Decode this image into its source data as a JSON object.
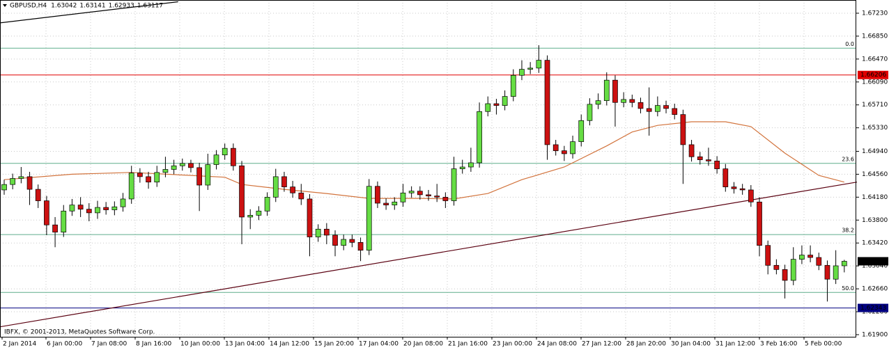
{
  "chart_data": {
    "type": "candlestick",
    "title": "GBPUSD,H4",
    "last_ohlc": [
      1.63042,
      1.63141,
      1.62933,
      1.63117
    ],
    "footer": "IBFX, © 2001-2013, MetaQuotes Software Corp.",
    "categories": [
      "2 Jan 2014",
      "6 Jan 00:00",
      "7 Jan 08:00",
      "8 Jan 16:00",
      "10 Jan 00:00",
      "13 Jan 04:00",
      "14 Jan 12:00",
      "15 Jan 20:00",
      "17 Jan 04:00",
      "20 Jan 08:00",
      "21 Jan 16:00",
      "23 Jan 00:00",
      "24 Jan 08:00",
      "27 Jan 12:00",
      "28 Jan 20:00",
      "30 Jan 04:00",
      "31 Jan 12:00",
      "3 Feb 16:00",
      "5 Feb 00:00"
    ],
    "ylim": [
      1.61865,
      1.67449
    ],
    "yticks": [
      {
        "value": 1.6723,
        "label": "1.67230"
      },
      {
        "value": 1.6685,
        "label": "1.66850"
      },
      {
        "value": 1.6647,
        "label": "1.66470"
      },
      {
        "value": 1.6609,
        "label": "1.66090"
      },
      {
        "value": 1.6571,
        "label": "1.65710"
      },
      {
        "value": 1.6533,
        "label": "1.65330"
      },
      {
        "value": 1.6494,
        "label": "1.64940"
      },
      {
        "value": 1.6456,
        "label": "1.64560"
      },
      {
        "value": 1.6418,
        "label": "1.64180"
      },
      {
        "value": 1.638,
        "label": "1.63800"
      },
      {
        "value": 1.6342,
        "label": "1.63420"
      },
      {
        "value": 1.6304,
        "label": "1.63040"
      },
      {
        "value": 1.6266,
        "label": "1.62660"
      },
      {
        "value": 1.6228,
        "label": "1.62280"
      },
      {
        "value": 1.619,
        "label": "1.61900"
      }
    ],
    "grid": true,
    "up_color": "#66dd44",
    "down_color": "#cc1111",
    "candles": [
      [
        1.643,
        1.6447,
        1.6422,
        1.6439
      ],
      [
        1.6439,
        1.6457,
        1.6431,
        1.6449
      ],
      [
        1.6449,
        1.6468,
        1.6441,
        1.6452
      ],
      [
        1.6452,
        1.646,
        1.6405,
        1.6431
      ],
      [
        1.6431,
        1.6439,
        1.64,
        1.6412
      ],
      [
        1.6412,
        1.642,
        1.6355,
        1.6372
      ],
      [
        1.6372,
        1.6385,
        1.6335,
        1.636
      ],
      [
        1.636,
        1.6405,
        1.6352,
        1.6395
      ],
      [
        1.6395,
        1.6415,
        1.6387,
        1.6405
      ],
      [
        1.6405,
        1.6418,
        1.6385,
        1.6398
      ],
      [
        1.6398,
        1.6408,
        1.6378,
        1.6392
      ],
      [
        1.6392,
        1.6412,
        1.6382,
        1.6401
      ],
      [
        1.6401,
        1.641,
        1.6389,
        1.6397
      ],
      [
        1.6397,
        1.6411,
        1.6388,
        1.6402
      ],
      [
        1.6402,
        1.6425,
        1.6394,
        1.6415
      ],
      [
        1.6415,
        1.647,
        1.6407,
        1.6458
      ],
      [
        1.6458,
        1.6466,
        1.6442,
        1.6452
      ],
      [
        1.6452,
        1.646,
        1.6432,
        1.6443
      ],
      [
        1.6443,
        1.647,
        1.6435,
        1.6459
      ],
      [
        1.6459,
        1.6485,
        1.6451,
        1.6464
      ],
      [
        1.6464,
        1.648,
        1.6456,
        1.647
      ],
      [
        1.647,
        1.6482,
        1.6462,
        1.6474
      ],
      [
        1.6474,
        1.648,
        1.6459,
        1.6467
      ],
      [
        1.6467,
        1.6475,
        1.6395,
        1.6438
      ],
      [
        1.6438,
        1.649,
        1.643,
        1.6472
      ],
      [
        1.6472,
        1.6496,
        1.6464,
        1.6488
      ],
      [
        1.6488,
        1.6507,
        1.648,
        1.6499
      ],
      [
        1.6499,
        1.6507,
        1.6462,
        1.647
      ],
      [
        1.647,
        1.6478,
        1.634,
        1.6385
      ],
      [
        1.6385,
        1.6398,
        1.6365,
        1.6388
      ],
      [
        1.6388,
        1.6403,
        1.638,
        1.6395
      ],
      [
        1.6395,
        1.6426,
        1.6387,
        1.6418
      ],
      [
        1.6418,
        1.6465,
        1.641,
        1.6452
      ],
      [
        1.6452,
        1.646,
        1.6427,
        1.6435
      ],
      [
        1.6435,
        1.6445,
        1.6417,
        1.6425
      ],
      [
        1.6425,
        1.644,
        1.6405,
        1.6415
      ],
      [
        1.6415,
        1.6423,
        1.632,
        1.6352
      ],
      [
        1.6352,
        1.6373,
        1.6344,
        1.6365
      ],
      [
        1.6365,
        1.6375,
        1.634,
        1.6355
      ],
      [
        1.6355,
        1.6363,
        1.632,
        1.6338
      ],
      [
        1.6338,
        1.6356,
        1.633,
        1.6348
      ],
      [
        1.6348,
        1.6356,
        1.6335,
        1.6343
      ],
      [
        1.6343,
        1.6351,
        1.6312,
        1.633
      ],
      [
        1.633,
        1.6448,
        1.6322,
        1.6436
      ],
      [
        1.6436,
        1.6444,
        1.64,
        1.6408
      ],
      [
        1.6408,
        1.6416,
        1.6397,
        1.6405
      ],
      [
        1.6405,
        1.6418,
        1.6397,
        1.641
      ],
      [
        1.641,
        1.644,
        1.6402,
        1.6425
      ],
      [
        1.6425,
        1.6436,
        1.6417,
        1.6428
      ],
      [
        1.6428,
        1.6436,
        1.6414,
        1.6422
      ],
      [
        1.6422,
        1.643,
        1.6412,
        1.642
      ],
      [
        1.642,
        1.644,
        1.641,
        1.6418
      ],
      [
        1.6418,
        1.6426,
        1.64,
        1.6412
      ],
      [
        1.6412,
        1.6485,
        1.6404,
        1.6465
      ],
      [
        1.6465,
        1.648,
        1.6457,
        1.6468
      ],
      [
        1.6468,
        1.65,
        1.646,
        1.6475
      ],
      [
        1.6475,
        1.6575,
        1.6467,
        1.656
      ],
      [
        1.656,
        1.6585,
        1.6552,
        1.6573
      ],
      [
        1.6573,
        1.6581,
        1.6555,
        1.657
      ],
      [
        1.657,
        1.6595,
        1.6562,
        1.6585
      ],
      [
        1.6585,
        1.663,
        1.6577,
        1.662
      ],
      [
        1.662,
        1.6645,
        1.6612,
        1.663
      ],
      [
        1.663,
        1.6642,
        1.6622,
        1.6632
      ],
      [
        1.6632,
        1.667,
        1.6624,
        1.6645
      ],
      [
        1.6645,
        1.6653,
        1.648,
        1.6505
      ],
      [
        1.6505,
        1.6513,
        1.6487,
        1.6495
      ],
      [
        1.6495,
        1.6503,
        1.6478,
        1.649
      ],
      [
        1.649,
        1.652,
        1.6482,
        1.651
      ],
      [
        1.651,
        1.6555,
        1.6502,
        1.6545
      ],
      [
        1.6545,
        1.6582,
        1.6537,
        1.6572
      ],
      [
        1.6572,
        1.659,
        1.6564,
        1.6578
      ],
      [
        1.6578,
        1.6625,
        1.657,
        1.6612
      ],
      [
        1.6612,
        1.662,
        1.6535,
        1.6575
      ],
      [
        1.6575,
        1.6592,
        1.6567,
        1.658
      ],
      [
        1.658,
        1.6588,
        1.6567,
        1.6575
      ],
      [
        1.6575,
        1.6583,
        1.6557,
        1.6565
      ],
      [
        1.6565,
        1.66,
        1.652,
        1.656
      ],
      [
        1.656,
        1.6585,
        1.6552,
        1.657
      ],
      [
        1.657,
        1.6578,
        1.6557,
        1.6565
      ],
      [
        1.6565,
        1.6573,
        1.6547,
        1.6555
      ],
      [
        1.6555,
        1.6563,
        1.644,
        1.6505
      ],
      [
        1.6505,
        1.6513,
        1.6477,
        1.6485
      ],
      [
        1.6485,
        1.6493,
        1.6472,
        1.648
      ],
      [
        1.648,
        1.65,
        1.647,
        1.6478
      ],
      [
        1.6478,
        1.6486,
        1.6457,
        1.6465
      ],
      [
        1.6465,
        1.6473,
        1.6427,
        1.6435
      ],
      [
        1.6435,
        1.6443,
        1.6424,
        1.6432
      ],
      [
        1.6432,
        1.644,
        1.6422,
        1.643
      ],
      [
        1.643,
        1.6438,
        1.6402,
        1.641
      ],
      [
        1.641,
        1.6418,
        1.632,
        1.6338
      ],
      [
        1.6338,
        1.6346,
        1.629,
        1.6305
      ],
      [
        1.6305,
        1.6315,
        1.629,
        1.6298
      ],
      [
        1.6298,
        1.6306,
        1.625,
        1.628
      ],
      [
        1.628,
        1.6335,
        1.6272,
        1.6315
      ],
      [
        1.6315,
        1.6338,
        1.6307,
        1.6322
      ],
      [
        1.6322,
        1.6338,
        1.631,
        1.6318
      ],
      [
        1.6318,
        1.6326,
        1.6297,
        1.6305
      ],
      [
        1.6305,
        1.6313,
        1.6245,
        1.6282
      ],
      [
        1.6282,
        1.633,
        1.6274,
        1.63042
      ],
      [
        1.63042,
        1.63141,
        1.62933,
        1.63117
      ]
    ],
    "moving_average": {
      "color": "#d2733c",
      "x": [
        0,
        8,
        15,
        22,
        26,
        28,
        33,
        38,
        43,
        49,
        53,
        57,
        61,
        66,
        71,
        74,
        77,
        81,
        85,
        88,
        92,
        96,
        99
      ],
      "values": [
        1.6447,
        1.6456,
        1.6459,
        1.6454,
        1.6451,
        1.6439,
        1.6431,
        1.6424,
        1.6416,
        1.6416,
        1.6415,
        1.6424,
        1.6447,
        1.6468,
        1.6503,
        1.6526,
        1.6537,
        1.6543,
        1.6543,
        1.6535,
        1.6491,
        1.6454,
        1.6443
      ]
    },
    "trendlines": [
      {
        "color": "#000000",
        "x": [
          -0.5,
          20.5
        ],
        "values": [
          1.6707,
          1.6742
        ]
      },
      {
        "color": "#5a0010",
        "x": [
          -0.5,
          100.5
        ],
        "values": [
          1.6203,
          1.6443
        ]
      }
    ],
    "fibonacci": {
      "color": "#5fae8c",
      "levels": [
        {
          "level": "0.0",
          "value": 1.6665
        },
        {
          "level": "23.6",
          "value": 1.6474
        },
        {
          "level": "38.2",
          "value": 1.6356
        },
        {
          "level": "50.0",
          "value": 1.626
        }
      ]
    },
    "price_lines": [
      {
        "value": 1.66206,
        "color": "#e00000"
      },
      {
        "value": 1.62343,
        "color": "#000080"
      }
    ]
  }
}
